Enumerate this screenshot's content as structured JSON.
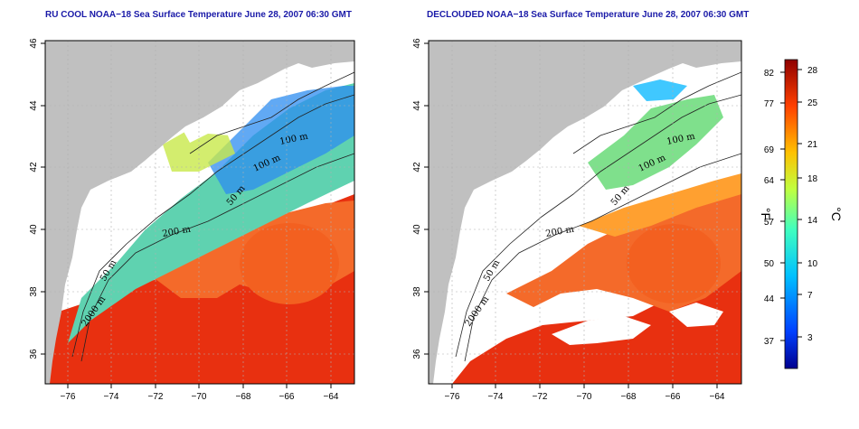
{
  "left_panel": {
    "title": "RU COOL NOAA−18 Sea Surface Temperature June 28, 2007 06:30 GMT",
    "contour_labels": [
      "100 m",
      "100 m",
      "50 m",
      "200 m",
      "50 m",
      "2000 m"
    ]
  },
  "right_panel": {
    "title": "DECLOUDED NOAA−18 Sea Surface Temperature June 28, 2007 06:30 GMT",
    "contour_labels": [
      "100 m",
      "100 m",
      "50 m",
      "200 m",
      "50 m",
      "2000 m"
    ]
  },
  "axes": {
    "x_ticks": [
      "−76",
      "−74",
      "−72",
      "−70",
      "−68",
      "−66",
      "−64"
    ],
    "y_ticks": [
      "46",
      "44",
      "42",
      "40",
      "38",
      "36"
    ]
  },
  "colorbar": {
    "fahrenheit_unit": "°F",
    "celsius_unit": "°C",
    "fahrenheit_ticks": [
      "82",
      "77",
      "69",
      "64",
      "57",
      "50",
      "44",
      "37"
    ],
    "celsius_ticks": [
      "28",
      "25",
      "21",
      "18",
      "14",
      "10",
      "7",
      "3"
    ],
    "colors": [
      "#00008f",
      "#0040ff",
      "#00c0ff",
      "#40ffbf",
      "#c0ff40",
      "#ffc000",
      "#ff4000",
      "#8f0000"
    ]
  },
  "map_colors": {
    "land": "#c0c0c0",
    "cloud": "#ffffff",
    "warm": "#e83010",
    "gulfstream": "#f46a2a",
    "mid": "#5fd2b0",
    "cool": "#2c8cf0"
  }
}
